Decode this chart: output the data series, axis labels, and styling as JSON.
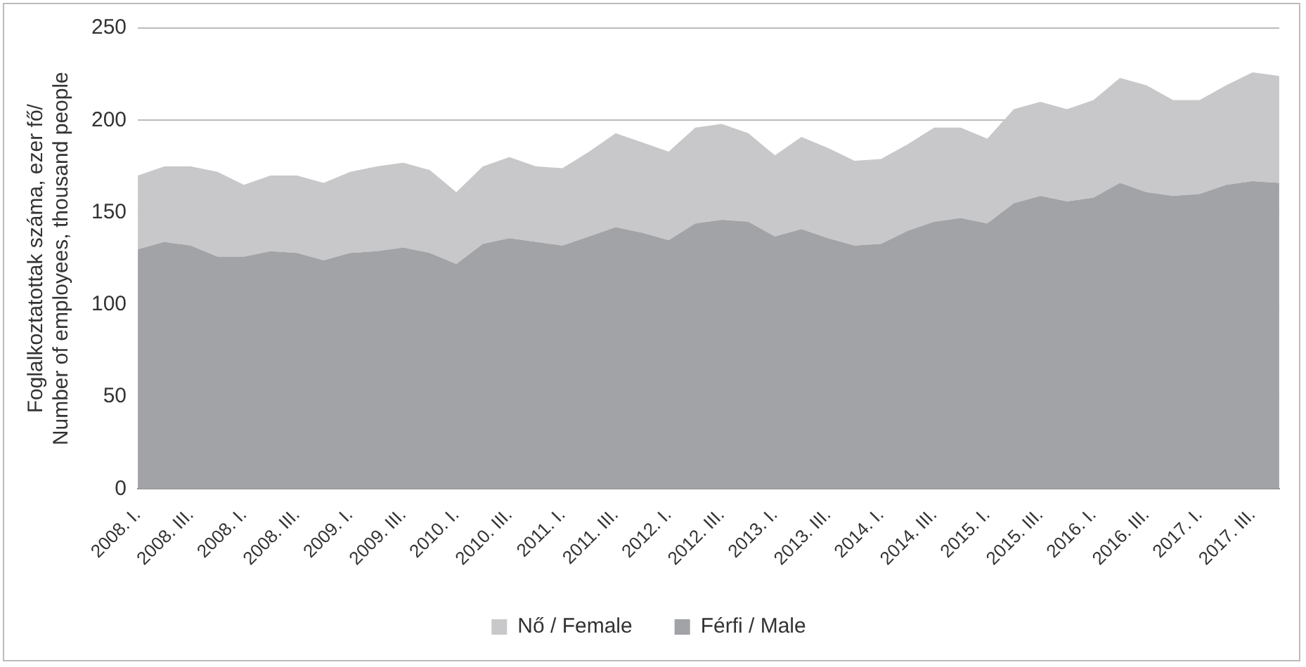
{
  "chart_data": {
    "type": "area",
    "stacked": true,
    "ylabel": "Foglalkoztatottak száma, ezer fő/\nNumber of employees, thousand people",
    "categories": [
      "2008. I.",
      null,
      "2008. III.",
      null,
      "2008. I.",
      null,
      "2008. III.",
      null,
      "2009. I.",
      null,
      "2009. III.",
      null,
      "2010. I.",
      null,
      "2010. III.",
      null,
      "2011. I.",
      null,
      "2011. III.",
      null,
      "2012. I.",
      null,
      "2012. III.",
      null,
      "2013. I.",
      null,
      "2013. III.",
      null,
      "2014. I.",
      null,
      "2014. III.",
      null,
      "2015. I.",
      null,
      "2015. III.",
      null,
      "2016. I.",
      null,
      "2016. III.",
      null,
      "2017. I.",
      null,
      "2017. III.",
      null
    ],
    "series": [
      {
        "name": "Férfi / Male",
        "color": "#a2a3a6",
        "values": [
          130,
          134,
          132,
          126,
          126,
          129,
          128,
          124,
          128,
          129,
          131,
          128,
          122,
          133,
          136,
          134,
          132,
          137,
          142,
          139,
          135,
          144,
          146,
          145,
          137,
          141,
          136,
          132,
          133,
          140,
          145,
          147,
          144,
          155,
          159,
          156,
          158,
          166,
          161,
          159,
          160,
          165,
          167,
          166
        ]
      },
      {
        "name": "Nő / Female",
        "color": "#c8c8ca",
        "values": [
          40,
          41,
          43,
          46,
          39,
          41,
          42,
          42,
          44,
          46,
          46,
          45,
          39,
          42,
          44,
          41,
          42,
          46,
          51,
          49,
          48,
          52,
          52,
          48,
          44,
          50,
          49,
          46,
          46,
          47,
          51,
          49,
          46,
          51,
          51,
          50,
          53,
          57,
          58,
          52,
          51,
          54,
          59,
          58
        ]
      }
    ],
    "ylim": [
      0,
      250
    ],
    "yticks": [
      0,
      50,
      100,
      150,
      200,
      250
    ],
    "grid": "y",
    "legend": "bottom"
  }
}
